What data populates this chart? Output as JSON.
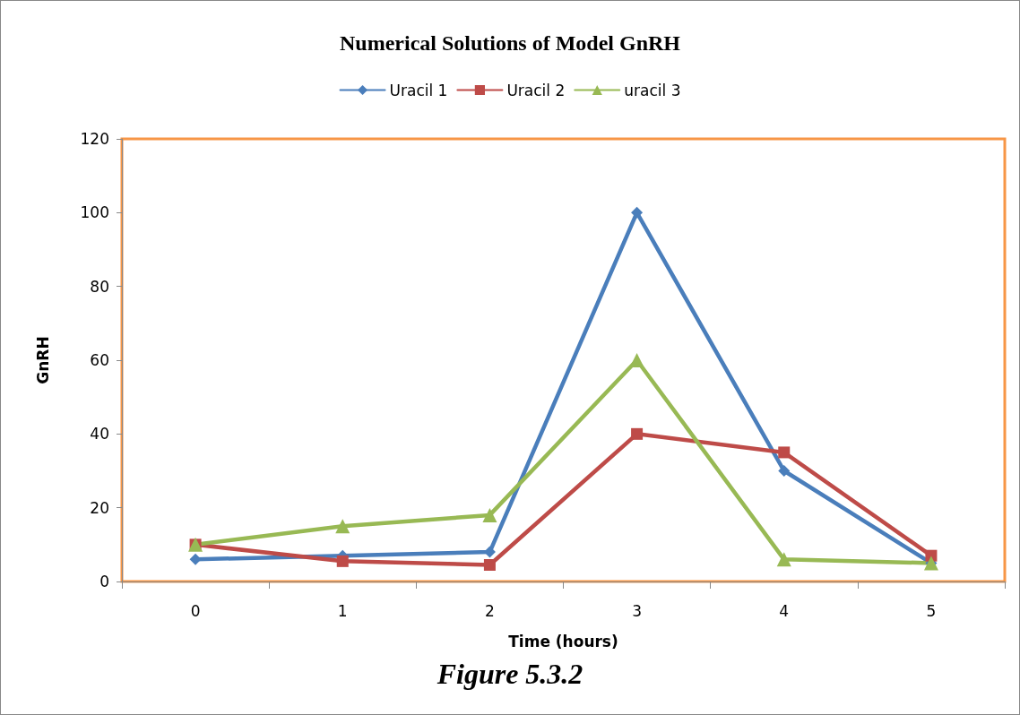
{
  "chart_data": {
    "type": "line",
    "title": "Numerical Solutions of Model GnRH",
    "xlabel": "Time (hours)",
    "ylabel": "GnRH",
    "annotations": [
      "Figure 5.3.2"
    ],
    "categories": [
      "0",
      "1",
      "2",
      "3",
      "4",
      "5"
    ],
    "series": [
      {
        "name": "Uracil 1",
        "color": "#4a7ebb",
        "marker": "diamond",
        "values": [
          6,
          7,
          8,
          100,
          30,
          5
        ]
      },
      {
        "name": "Uracil 2",
        "color": "#be4b48",
        "marker": "square",
        "values": [
          10,
          5.5,
          4.5,
          40,
          35,
          7
        ]
      },
      {
        "name": "uracil 3",
        "color": "#98b954",
        "marker": "triangle",
        "values": [
          10,
          15,
          18,
          60,
          6,
          5
        ]
      }
    ],
    "ylim": [
      0,
      120
    ],
    "yticks": [
      0,
      20,
      40,
      60,
      80,
      100,
      120
    ],
    "grid": false,
    "legend": "top",
    "line_style": "solid"
  }
}
